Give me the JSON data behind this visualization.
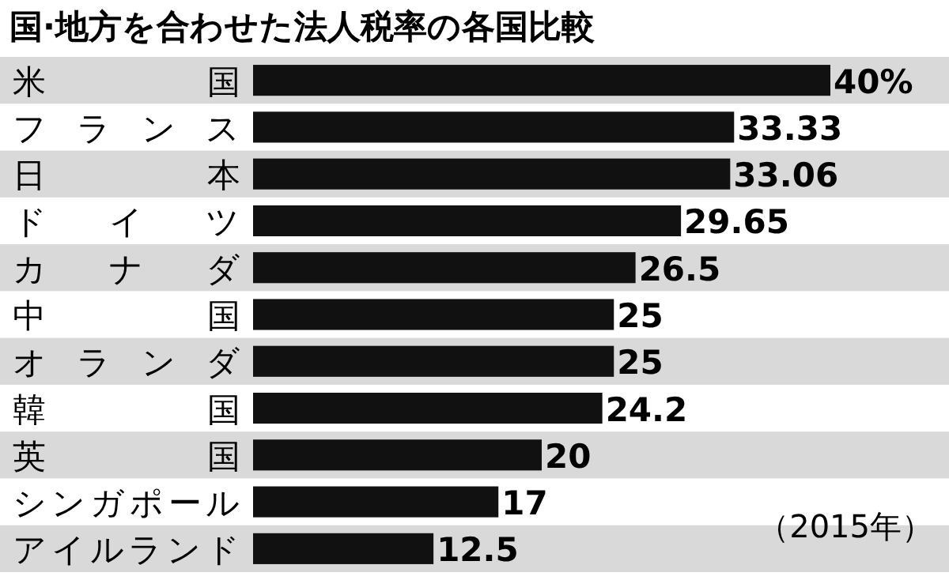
{
  "chart_data": {
    "type": "bar",
    "orientation": "horizontal",
    "title": "国·地方を合わせた法人税率の各国比較",
    "categories": [
      "米国",
      "フランス",
      "日本",
      "ドイツ",
      "カナダ",
      "中国",
      "オランダ",
      "韓国",
      "英国",
      "シンガポール",
      "アイルランド"
    ],
    "values": [
      40,
      33.33,
      33.06,
      29.65,
      26.5,
      25,
      25,
      24.2,
      20,
      17,
      12.5
    ],
    "value_labels": [
      "40%",
      "33.33",
      "33.06",
      "29.65",
      "26.5",
      "25",
      "25",
      "24.2",
      "20",
      "17",
      "12.5"
    ],
    "color": "#111111",
    "annotations": [
      "（2015年）"
    ]
  }
}
